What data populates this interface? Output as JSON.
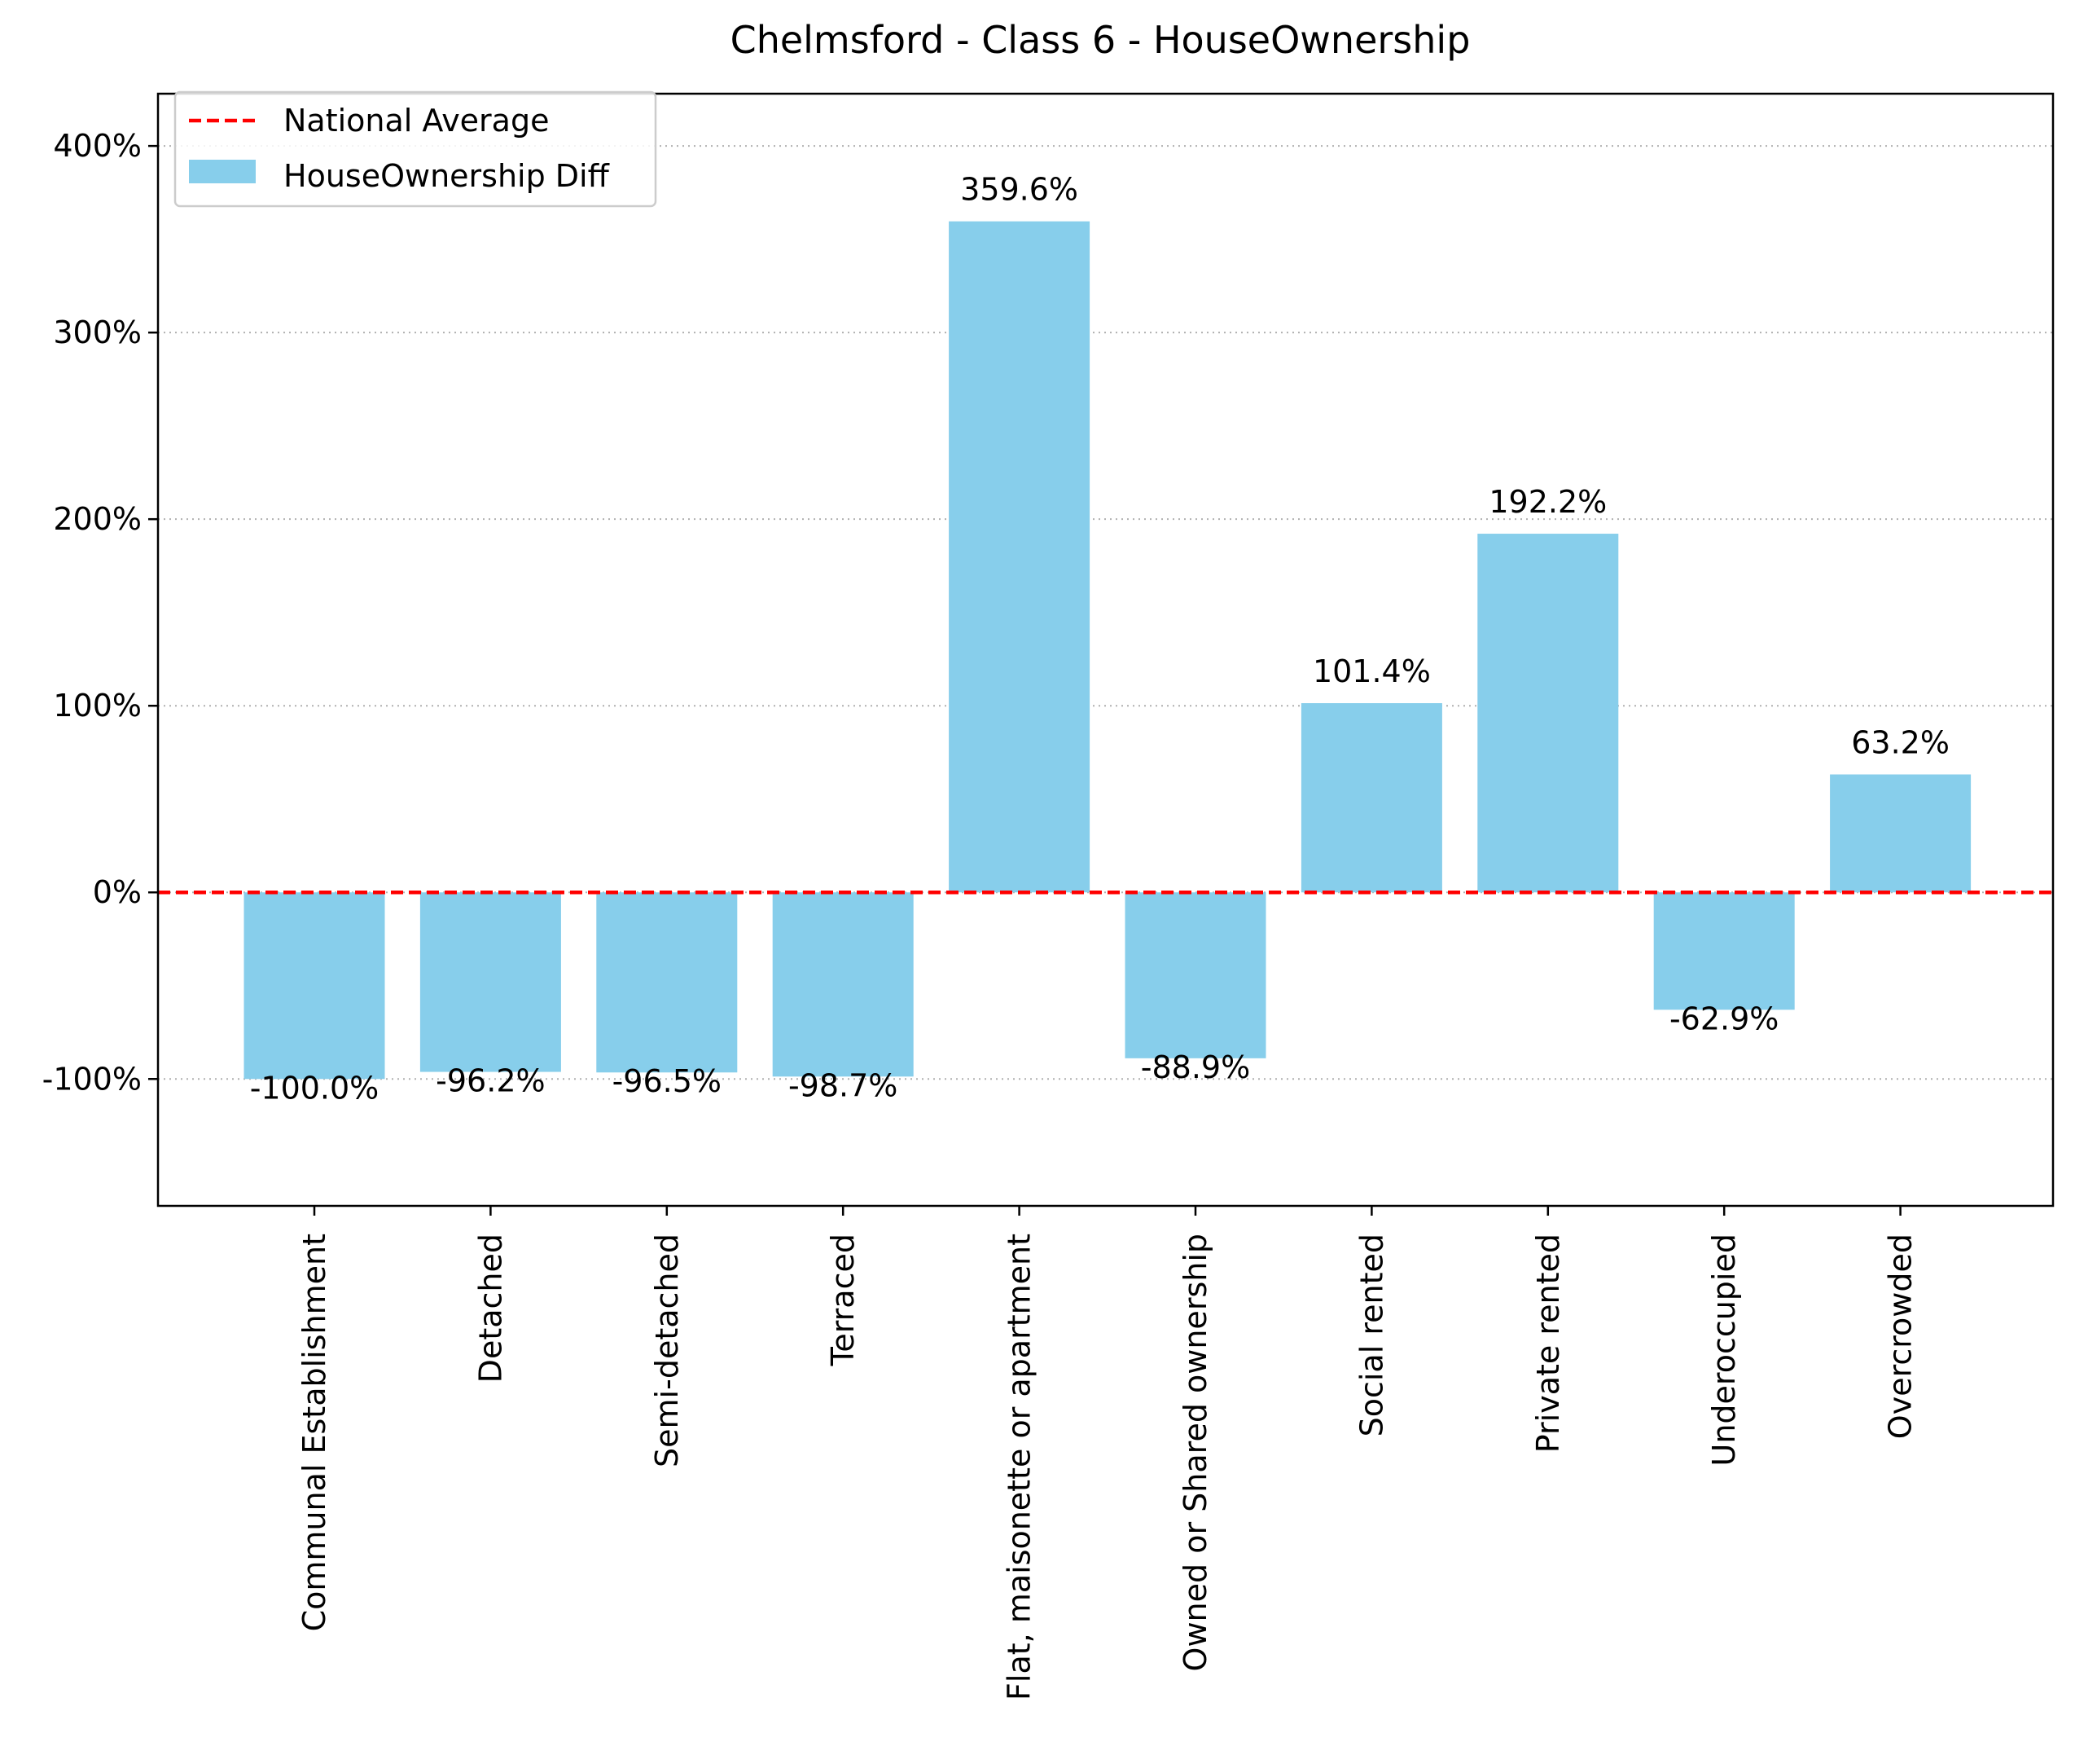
{
  "chart_data": {
    "type": "bar",
    "title": "Chelmsford - Class 6 - HouseOwnership",
    "xlabel": "",
    "ylabel": "",
    "categories": [
      "Communal Establishment",
      "Detached",
      "Semi-detached",
      "Terraced",
      "Flat, maisonette or apartment",
      "Owned or Shared ownership",
      "Social rented",
      "Private rented",
      "Underoccupied",
      "Overcrowded"
    ],
    "series": [
      {
        "name": "HouseOwnership Diff",
        "values": [
          -100.0,
          -96.2,
          -96.5,
          -98.7,
          359.6,
          -88.9,
          101.4,
          192.2,
          -62.9,
          63.2
        ],
        "data_labels": [
          "-100.0%",
          "-96.2%",
          "-96.5%",
          "-98.7%",
          "359.6%",
          "-88.9%",
          "101.4%",
          "192.2%",
          "-62.9%",
          "63.2%"
        ],
        "color": "#87CEEB"
      }
    ],
    "reference_line": {
      "name": "National Average",
      "value": 0,
      "color": "#ff0000",
      "style": "dashed"
    },
    "ylim": [
      -168,
      428
    ],
    "yticks": [
      -100,
      0,
      100,
      200,
      300,
      400
    ],
    "ytick_labels": [
      "-100%",
      "0%",
      "100%",
      "200%",
      "300%",
      "400%"
    ],
    "grid": "horizontal dotted",
    "legend": {
      "position": "top-left",
      "entries": [
        "National Average",
        "HouseOwnership Diff"
      ]
    }
  }
}
